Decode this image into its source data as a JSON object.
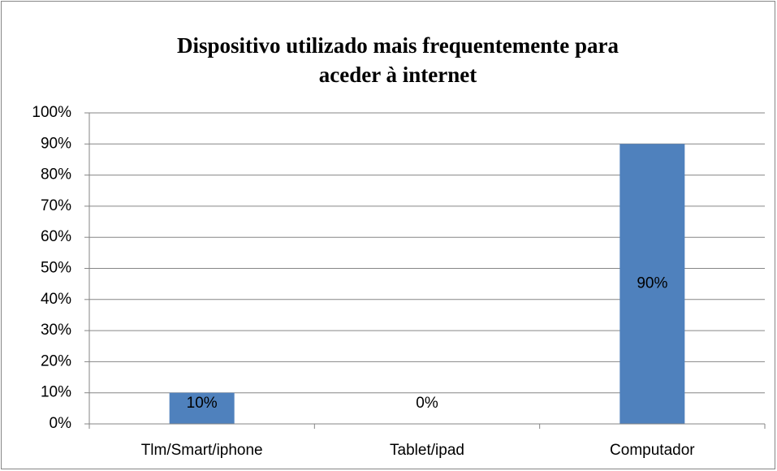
{
  "chart_data": {
    "type": "bar",
    "title": "Dispositivo utilizado mais frequentemente para aceder à internet",
    "categories": [
      "Tlm/Smart/iphone",
      "Tablet/ipad",
      "Computador"
    ],
    "values": [
      10,
      0,
      90
    ],
    "value_labels": [
      "10%",
      "0%",
      "90%"
    ],
    "color": "#4f81bd",
    "ylim": [
      0,
      100
    ],
    "yticks": [
      {
        "value": 0,
        "label": "0%"
      },
      {
        "value": 10,
        "label": "10%"
      },
      {
        "value": 20,
        "label": "20%"
      },
      {
        "value": 30,
        "label": "30%"
      },
      {
        "value": 40,
        "label": "40%"
      },
      {
        "value": 50,
        "label": "50%"
      },
      {
        "value": 60,
        "label": "60%"
      },
      {
        "value": 70,
        "label": "70%"
      },
      {
        "value": 80,
        "label": "80%"
      },
      {
        "value": 90,
        "label": "90%"
      },
      {
        "value": 100,
        "label": "100%"
      }
    ],
    "grid": true
  }
}
